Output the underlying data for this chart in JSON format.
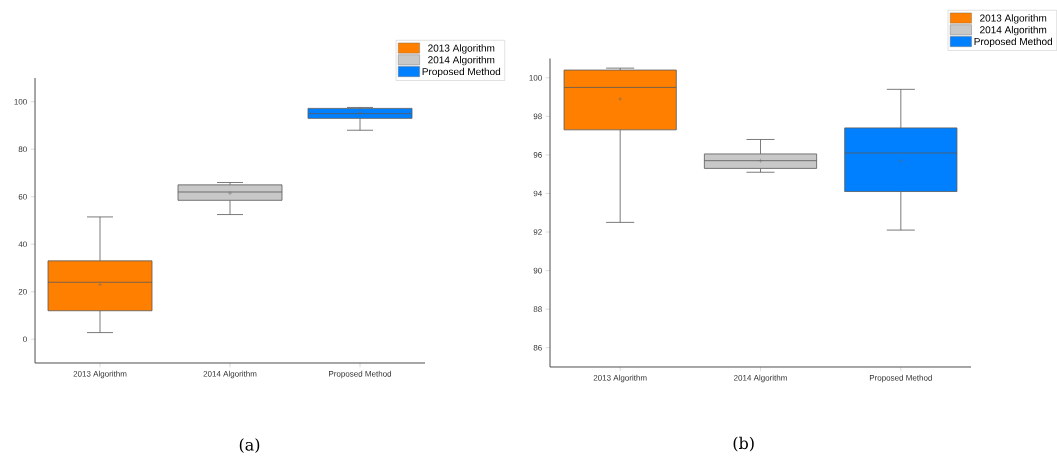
{
  "chart_data": [
    {
      "type": "box",
      "categories": [
        "2013 Algorithm",
        "2014 Algorithm",
        "Proposed Method"
      ],
      "ylim": [
        -10,
        110
      ],
      "yticks": [
        0,
        20,
        40,
        60,
        80,
        100
      ],
      "legend": "top right",
      "annotations": [
        "(a)"
      ],
      "series": [
        {
          "name": "2013 Algorithm",
          "color": "#ff8000",
          "boxes": [
            {
              "low": 2.8,
              "q1": 12,
              "median": 24,
              "q3": 33,
              "high": 51.5,
              "mean": 23
            },
            null,
            null
          ]
        },
        {
          "name": "2014 Algorithm",
          "color": "#c8c8c8",
          "boxes": [
            null,
            {
              "low": 52.5,
              "q1": 58.5,
              "median": 62,
              "q3": 65,
              "high": 66,
              "mean": 61.5
            },
            null
          ]
        },
        {
          "name": "Proposed Method",
          "color": "#0080ff",
          "boxes": [
            null,
            null,
            {
              "low": 88,
              "q1": 93,
              "median": 95,
              "q3": 97.2,
              "high": 97.6,
              "mean": 95.5
            }
          ]
        }
      ]
    },
    {
      "type": "box",
      "categories": [
        "2013 Algorithm",
        "2014 Algorithm",
        "Proposed Method"
      ],
      "ylim": [
        85,
        101
      ],
      "yticks": [
        86,
        88,
        90,
        92,
        94,
        96,
        98,
        100
      ],
      "legend": "top right",
      "annotations": [
        "(b)"
      ],
      "series": [
        {
          "name": "2013 Algorithm",
          "color": "#ff8000",
          "boxes": [
            {
              "low": 92.5,
              "q1": 97.3,
              "median": 99.5,
              "q3": 100.4,
              "high": 100.5,
              "mean": 98.9
            },
            null,
            null
          ]
        },
        {
          "name": "2014 Algorithm",
          "color": "#c8c8c8",
          "boxes": [
            null,
            {
              "low": 95.1,
              "q1": 95.3,
              "median": 95.7,
              "q3": 96.05,
              "high": 96.8,
              "mean": 95.7
            },
            null
          ]
        },
        {
          "name": "Proposed Method",
          "color": "#0080ff",
          "boxes": [
            null,
            null,
            {
              "low": 92.1,
              "q1": 94.1,
              "median": 96.1,
              "q3": 97.4,
              "high": 99.4,
              "mean": 95.7
            }
          ]
        }
      ]
    }
  ]
}
